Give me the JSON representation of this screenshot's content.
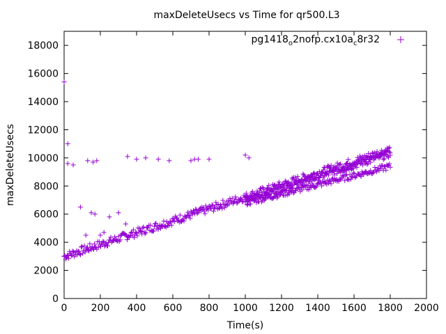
{
  "chart_data": {
    "type": "scatter",
    "title": "maxDeleteUsecs vs Time for qr500.L3",
    "xlabel": "Time(s)",
    "ylabel": "maxDeleteUsecs",
    "xlim": [
      0,
      2000
    ],
    "ylim": [
      0,
      19000
    ],
    "xticks": [
      0,
      200,
      400,
      600,
      800,
      1000,
      1200,
      1400,
      1600,
      1800,
      2000
    ],
    "yticks": [
      0,
      2000,
      4000,
      6000,
      8000,
      10000,
      12000,
      14000,
      16000,
      18000
    ],
    "grid": false,
    "legend_position": "top-right",
    "marker": "+",
    "series": [
      {
        "name_parts": [
          "pg1418",
          "o",
          "2nofp.cx10a",
          "c",
          "8r32"
        ],
        "color": "#9400d3",
        "main_band": {
          "x_start": 0,
          "x_end": 1800,
          "y_start": 3000,
          "y_end": 10600,
          "spread": 300
        },
        "upper_branch": {
          "x_start": 1000,
          "x_end": 1800,
          "y_start": 7000,
          "y_end": 10300
        },
        "lower_branch": {
          "x_start": 1000,
          "x_end": 1800,
          "y_start": 6800,
          "y_end": 9400
        },
        "outliers": [
          [
            0,
            15400
          ],
          [
            20,
            11000
          ],
          [
            20,
            9600
          ],
          [
            50,
            9500
          ],
          [
            90,
            6500
          ],
          [
            120,
            4500
          ],
          [
            130,
            9800
          ],
          [
            150,
            6100
          ],
          [
            160,
            9700
          ],
          [
            170,
            6000
          ],
          [
            180,
            9800
          ],
          [
            200,
            4500
          ],
          [
            220,
            4700
          ],
          [
            250,
            5800
          ],
          [
            300,
            6100
          ],
          [
            340,
            5300
          ],
          [
            350,
            10100
          ],
          [
            400,
            9900
          ],
          [
            450,
            10000
          ],
          [
            520,
            9900
          ],
          [
            580,
            9800
          ],
          [
            700,
            9800
          ],
          [
            720,
            9900
          ],
          [
            740,
            9900
          ],
          [
            800,
            9900
          ],
          [
            1000,
            10200
          ],
          [
            1020,
            10000
          ]
        ]
      }
    ]
  }
}
